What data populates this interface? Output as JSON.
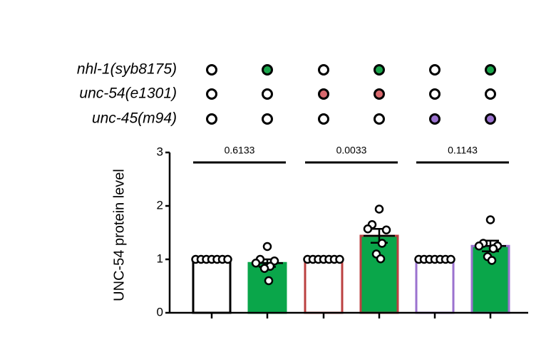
{
  "chart_data": {
    "type": "bar",
    "ylabel": "UNC-54 protein level",
    "ylim": [
      0,
      3
    ],
    "yticks": [
      "0",
      "1",
      "2",
      "3"
    ],
    "genotype_rows": [
      {
        "label": "nhl-1(syb8175)",
        "filled_color": "#1aa54b",
        "filled": [
          false,
          true,
          false,
          true,
          false,
          true
        ]
      },
      {
        "label": "unc-54(e1301)",
        "filled_color": "#d9696e",
        "filled": [
          false,
          false,
          true,
          true,
          false,
          false
        ]
      },
      {
        "label": "unc-45(m94)",
        "filled_color": "#9b72cf",
        "filled": [
          false,
          false,
          false,
          false,
          true,
          true
        ]
      }
    ],
    "bars": [
      {
        "value": 1.0,
        "sem": 0.0,
        "fill": "#ffffff",
        "edge": "#000000",
        "points": [
          1.0,
          1.0,
          1.0,
          1.0,
          1.0,
          1.0,
          1.0
        ]
      },
      {
        "value": 0.93,
        "sem": 0.07,
        "fill": "#0aa64a",
        "edge": "#0aa64a",
        "points": [
          1.24,
          1.0,
          0.97,
          0.93,
          0.87,
          0.83,
          0.6
        ]
      },
      {
        "value": 1.0,
        "sem": 0.0,
        "fill": "#ffffff",
        "edge": "#bb4040",
        "points": [
          1.0,
          1.0,
          1.0,
          1.0,
          1.0,
          1.0,
          1.0
        ]
      },
      {
        "value": 1.44,
        "sem": 0.13,
        "fill": "#0aa64a",
        "edge": "#bb4040",
        "points": [
          1.94,
          1.65,
          1.55,
          1.57,
          1.3,
          1.1,
          1.01
        ]
      },
      {
        "value": 1.0,
        "sem": 0.0,
        "fill": "#ffffff",
        "edge": "#9b72cf",
        "points": [
          1.0,
          1.0,
          1.0,
          1.0,
          1.0,
          1.0,
          1.0
        ]
      },
      {
        "value": 1.25,
        "sem": 0.1,
        "fill": "#0aa64a",
        "edge": "#9b72cf",
        "points": [
          1.74,
          1.3,
          1.25,
          1.25,
          1.2,
          1.05,
          0.98
        ]
      }
    ],
    "comparisons": [
      {
        "from": 0,
        "to": 1,
        "p": "0.6133"
      },
      {
        "from": 2,
        "to": 3,
        "p": "0.0033"
      },
      {
        "from": 4,
        "to": 5,
        "p": "0.1143"
      }
    ]
  }
}
